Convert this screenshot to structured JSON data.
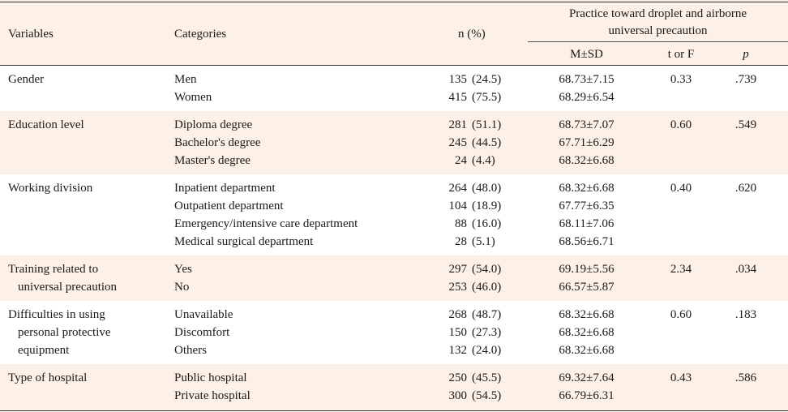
{
  "header": {
    "variables": "Variables",
    "categories": "Categories",
    "n_pct": "n (%)",
    "practice_line1": "Practice toward droplet and airborne",
    "practice_line2": "universal precaution",
    "msd": "M±SD",
    "t_or_f": "t or F",
    "p": "p"
  },
  "groups": [
    {
      "variable": [
        "Gender"
      ],
      "t": "0.33",
      "p": ".739",
      "rows": [
        {
          "category": "Men",
          "n": "135",
          "pct": "(24.5)",
          "msd": "68.73±7.15"
        },
        {
          "category": "Women",
          "n": "415",
          "pct": "(75.5)",
          "msd": "68.29±6.54"
        }
      ]
    },
    {
      "variable": [
        "Education level"
      ],
      "t": "0.60",
      "p": ".549",
      "rows": [
        {
          "category": "Diploma degree",
          "n": "281",
          "pct": "(51.1)",
          "msd": "68.73±7.07"
        },
        {
          "category": "Bachelor's degree",
          "n": "245",
          "pct": "(44.5)",
          "msd": "67.71±6.29"
        },
        {
          "category": "Master's degree",
          "n": "24",
          "pct": "(4.4)",
          "msd": "68.32±6.68"
        }
      ]
    },
    {
      "variable": [
        "Working division"
      ],
      "t": "0.40",
      "p": ".620",
      "rows": [
        {
          "category": "Inpatient department",
          "n": "264",
          "pct": "(48.0)",
          "msd": "68.32±6.68"
        },
        {
          "category": "Outpatient department",
          "n": "104",
          "pct": "(18.9)",
          "msd": "67.77±6.35"
        },
        {
          "category": "Emergency/intensive care department",
          "n": "88",
          "pct": "(16.0)",
          "msd": "68.11±7.06"
        },
        {
          "category": "Medical surgical department",
          "n": "28",
          "pct": "(5.1)",
          "msd": "68.56±6.71"
        }
      ]
    },
    {
      "variable": [
        "Training related to",
        "universal precaution"
      ],
      "t": "2.34",
      "p": ".034",
      "rows": [
        {
          "category": "Yes",
          "n": "297",
          "pct": "(54.0)",
          "msd": "69.19±5.56"
        },
        {
          "category": "No",
          "n": "253",
          "pct": "(46.0)",
          "msd": "66.57±5.87"
        }
      ]
    },
    {
      "variable": [
        "Difficulties in using",
        "personal protective",
        "equipment"
      ],
      "t": "0.60",
      "p": ".183",
      "rows": [
        {
          "category": "Unavailable",
          "n": "268",
          "pct": "(48.7)",
          "msd": "68.32±6.68"
        },
        {
          "category": "Discomfort",
          "n": "150",
          "pct": "(27.3)",
          "msd": "68.32±6.68"
        },
        {
          "category": "Others",
          "n": "132",
          "pct": "(24.0)",
          "msd": "68.32±6.68"
        }
      ]
    },
    {
      "variable": [
        "Type of hospital"
      ],
      "t": "0.43",
      "p": ".586",
      "rows": [
        {
          "category": "Public hospital",
          "n": "250",
          "pct": "(45.5)",
          "msd": "69.32±7.64"
        },
        {
          "category": "Private hospital",
          "n": "300",
          "pct": "(54.5)",
          "msd": "66.79±6.31"
        }
      ]
    }
  ]
}
